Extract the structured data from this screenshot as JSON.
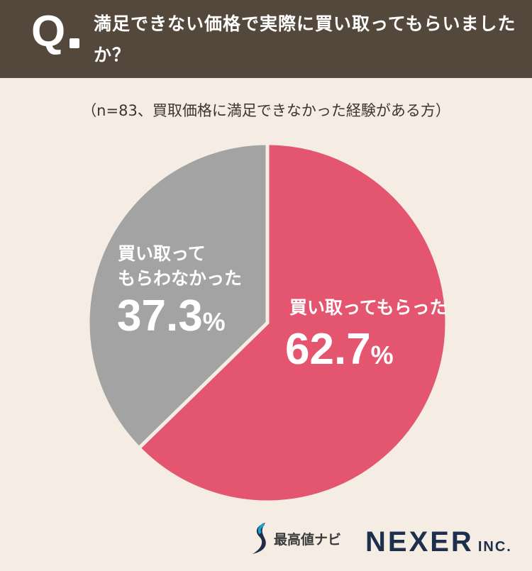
{
  "header": {
    "q_letter": "Q",
    "question": "満足できない価格で実際に買い取ってもらいましたか？"
  },
  "subtitle": "（n=83、買取価格に満足できなかった経験がある方）",
  "chart_data": {
    "type": "pie",
    "title": "満足できない価格で実際に買い取ってもらいましたか？",
    "subtitle": "（n=83、買取価格に満足できなかった経験がある方）",
    "slices": [
      {
        "label": "買い取ってもらった",
        "value": 62.7,
        "color": "#e4566f"
      },
      {
        "label": "買い取ってもらわなかった",
        "value": 37.3,
        "color": "#a3a3a3"
      }
    ],
    "unit": "%",
    "start_angle": "12 o'clock",
    "direction": "clockwise"
  },
  "labels": {
    "yes_text": "買い取ってもらった",
    "yes_value": "62.7",
    "no_text": "買い取って\nもらわなかった",
    "no_value": "37.3",
    "percent": "%"
  },
  "footer": {
    "brand": "最高値ナビ",
    "company": "NEXER",
    "company_suffix": "INC."
  },
  "colors": {
    "header_bg": "#54473b",
    "page_bg": "#f5ede3",
    "yes": "#e4566f",
    "no": "#a3a3a3",
    "company": "#1d2f4d"
  }
}
